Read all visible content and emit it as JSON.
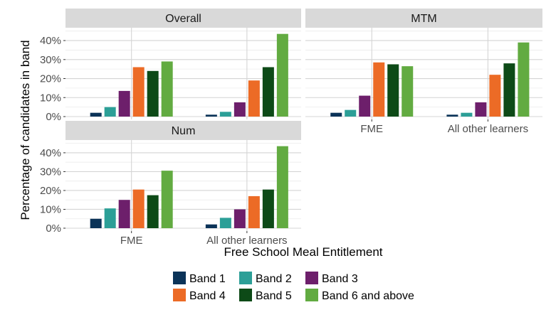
{
  "chart_data": {
    "type": "bar",
    "ylabel": "Percentage of candidates in band",
    "xlabel": "Free School Meal Entitlement",
    "categories": [
      "FME",
      "All other learners"
    ],
    "yticks": [
      "0%",
      "10%",
      "20%",
      "30%",
      "40%"
    ],
    "ylim": [
      0,
      46
    ],
    "grid": true,
    "legend_position": "bottom",
    "series_meta": [
      {
        "name": "Band 1",
        "color": "#0b3358"
      },
      {
        "name": "Band 2",
        "color": "#2c9f97"
      },
      {
        "name": "Band 3",
        "color": "#6d1f6b"
      },
      {
        "name": "Band 4",
        "color": "#ec6b26"
      },
      {
        "name": "Band 5",
        "color": "#0d4a17"
      },
      {
        "name": "Band 6 and above",
        "color": "#62ab41"
      }
    ],
    "panels": [
      {
        "title": "Overall",
        "values": {
          "FME": [
            2,
            5,
            13.5,
            26,
            24,
            29
          ],
          "All other learners": [
            1,
            2.5,
            7.5,
            19,
            26,
            43.5
          ]
        }
      },
      {
        "title": "MTM",
        "values": {
          "FME": [
            2,
            3.5,
            11,
            28.5,
            27.5,
            26.5
          ],
          "All other learners": [
            1,
            2,
            7.5,
            22,
            28,
            39
          ]
        }
      },
      {
        "title": "Num",
        "values": {
          "FME": [
            5,
            10.5,
            15,
            20.5,
            17.5,
            30.5
          ],
          "All other learners": [
            2,
            5.5,
            10,
            17,
            20.5,
            43.5
          ]
        }
      }
    ]
  }
}
